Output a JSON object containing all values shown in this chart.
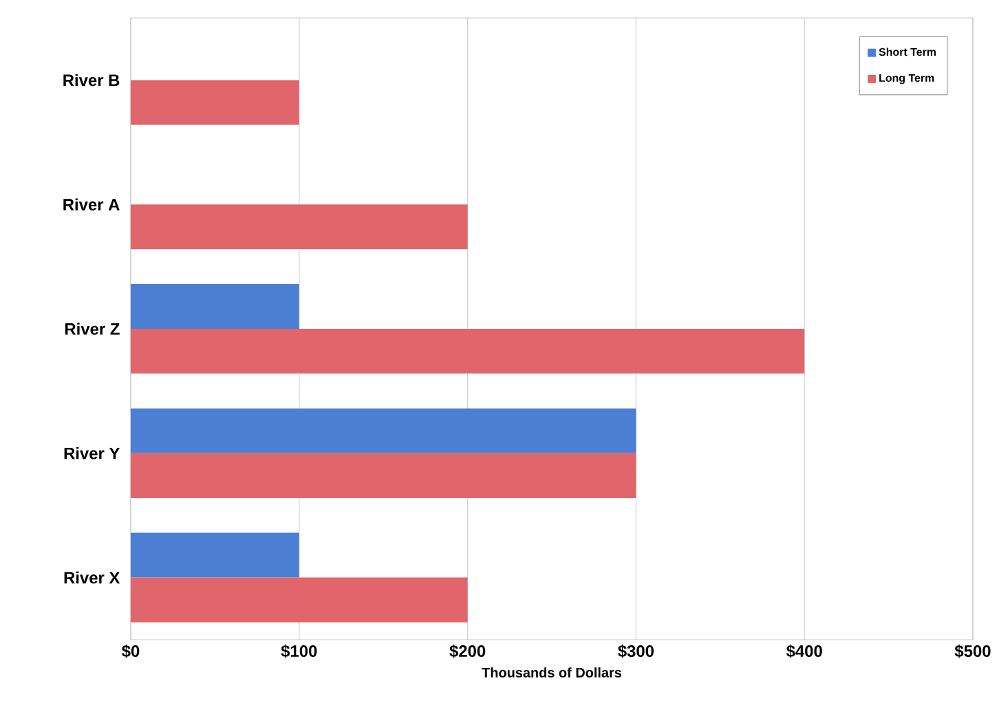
{
  "chart_data": {
    "type": "bar",
    "orientation": "horizontal",
    "xlabel": "Thousands of Dollars",
    "categories": [
      "River B",
      "River A",
      "River Z",
      "River Y",
      "River X"
    ],
    "series": [
      {
        "name": "Short Term",
        "color": "#4a7fd4",
        "values": [
          null,
          null,
          100,
          300,
          100
        ]
      },
      {
        "name": "Long Term",
        "color": "#e0666b",
        "values": [
          100,
          200,
          400,
          300,
          200
        ]
      }
    ],
    "xlim": [
      0,
      500
    ],
    "xticks": [
      {
        "value": 0,
        "label": "$0"
      },
      {
        "value": 100,
        "label": "$100"
      },
      {
        "value": 200,
        "label": "$200"
      },
      {
        "value": 300,
        "label": "$300"
      },
      {
        "value": 400,
        "label": "$400"
      },
      {
        "value": 500,
        "label": "$500"
      }
    ],
    "grid": "x",
    "legend": "top right"
  }
}
